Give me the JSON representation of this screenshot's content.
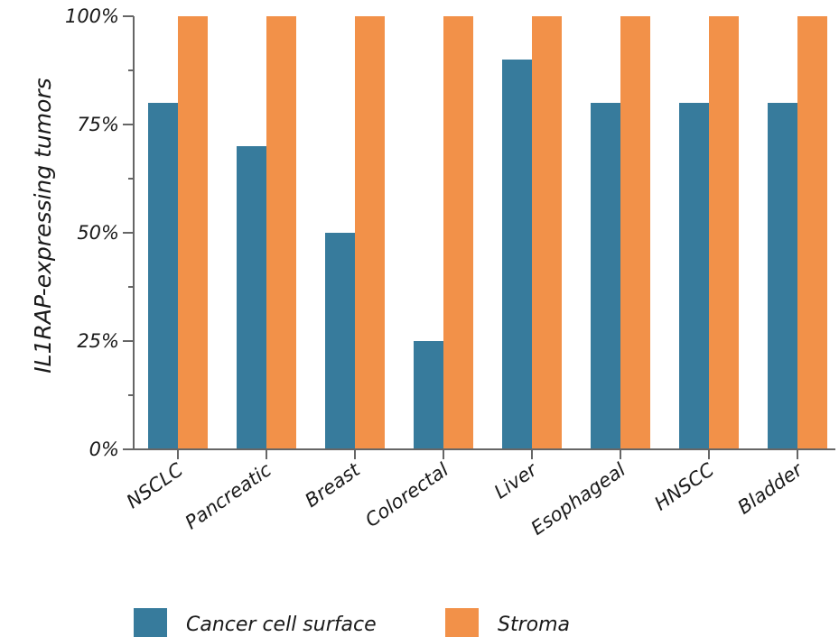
{
  "chart_data": {
    "type": "bar",
    "ylabel": "IL1RAP-expressing tumors",
    "xlabel": "",
    "categories": [
      "NSCLC",
      "Pancreatic",
      "Breast",
      "Colorectal",
      "Liver",
      "Esophageal",
      "HNSCC",
      "Bladder"
    ],
    "series": [
      {
        "name": "Cancer cell surface",
        "color": "#377b9c",
        "values": [
          80,
          70,
          50,
          25,
          90,
          80,
          80,
          80
        ]
      },
      {
        "name": "Stroma",
        "color": "#f29149",
        "values": [
          100,
          100,
          100,
          100,
          100,
          100,
          100,
          100
        ]
      }
    ],
    "ylim": [
      0,
      100
    ],
    "yticks": [
      0,
      25,
      50,
      75,
      100
    ],
    "ytick_labels": [
      "0%",
      "25%",
      "50%",
      "75%",
      "100%"
    ],
    "minor_ticks_per_interval": 1,
    "grid": false,
    "legend_position": "bottom"
  }
}
